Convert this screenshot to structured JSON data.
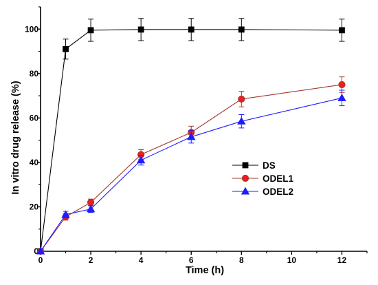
{
  "chart_data": {
    "type": "line",
    "title": "",
    "xlabel": "Time (h)",
    "ylabel": "In vitro drug release (%)",
    "xlim": [
      0,
      13
    ],
    "ylim": [
      0,
      110
    ],
    "x": [
      0,
      1,
      2,
      4,
      6,
      8,
      12
    ],
    "xticks": [
      0,
      2,
      4,
      6,
      8,
      10,
      12
    ],
    "yticks": [
      0,
      20,
      40,
      60,
      80,
      100
    ],
    "grid": false,
    "legend_position": "center-right",
    "series": [
      {
        "name": "DS",
        "color": "#000000",
        "marker": "square",
        "values": [
          0,
          91,
          99.5,
          99.8,
          99.8,
          99.8,
          99.5
        ],
        "errors": [
          0,
          4.5,
          5,
          5,
          5,
          5,
          5
        ]
      },
      {
        "name": "ODEL1",
        "color": "#a0372a",
        "marker_fill": "#ee1c24",
        "marker": "circle",
        "values": [
          0,
          15.5,
          22,
          43.5,
          53.5,
          68.5,
          75
        ],
        "errors": [
          0,
          1.5,
          1.5,
          2.2,
          2.8,
          3.5,
          3.5
        ]
      },
      {
        "name": "ODEL2",
        "color": "#1c1cff",
        "marker_fill": "#1c1cff",
        "marker": "triangle",
        "values": [
          0,
          16.5,
          19,
          41,
          51.5,
          58.5,
          69
        ],
        "errors": [
          0,
          1.5,
          1.5,
          2.2,
          2.8,
          3,
          3.5
        ]
      }
    ]
  }
}
